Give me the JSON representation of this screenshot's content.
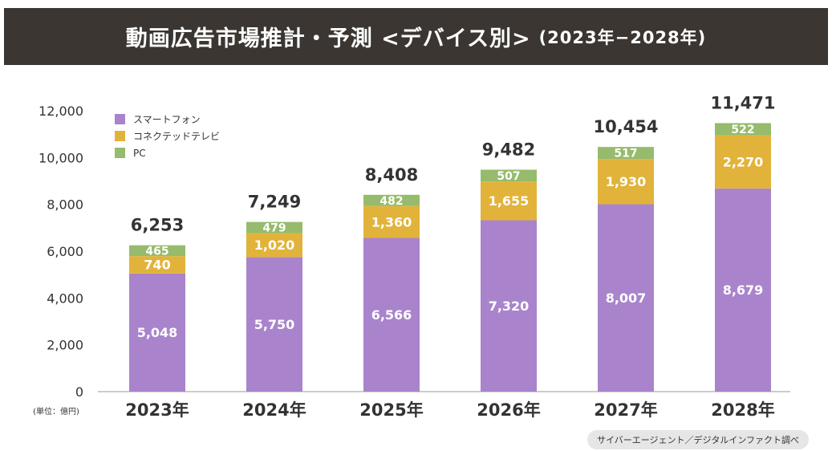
{
  "title": {
    "main": "動画広告市場推計・予測 <デバイス別>",
    "period": "(2023年−2028年)"
  },
  "source": "サイバーエージェント／デジタルインファクト調べ",
  "colors": {
    "smartphone": "#a984cc",
    "connected_tv": "#e2b33a",
    "pc": "#96bb6c",
    "axis_text": "#333333",
    "total_text": "#333333",
    "title_bg": "#3b3632"
  },
  "chart_data": {
    "type": "bar",
    "stacked": true,
    "categories": [
      "2023年",
      "2024年",
      "2025年",
      "2026年",
      "2027年",
      "2028年"
    ],
    "series": [
      {
        "name": "スマートフォン",
        "key": "smartphone",
        "values": [
          5048,
          5750,
          6566,
          7320,
          8007,
          8679
        ]
      },
      {
        "name": "コネクテッドテレビ",
        "key": "connected_tv",
        "values": [
          740,
          1020,
          1360,
          1655,
          1930,
          2270
        ]
      },
      {
        "name": "PC",
        "key": "pc",
        "values": [
          465,
          479,
          482,
          507,
          517,
          522
        ]
      }
    ],
    "totals": [
      6253,
      7249,
      8408,
      9482,
      10454,
      11471
    ],
    "ylim": [
      0,
      12000
    ],
    "yticks": [
      0,
      2000,
      4000,
      6000,
      8000,
      10000,
      12000
    ],
    "unit_label": "(単位：億円)",
    "legend_position": "top-left",
    "grid": false
  }
}
